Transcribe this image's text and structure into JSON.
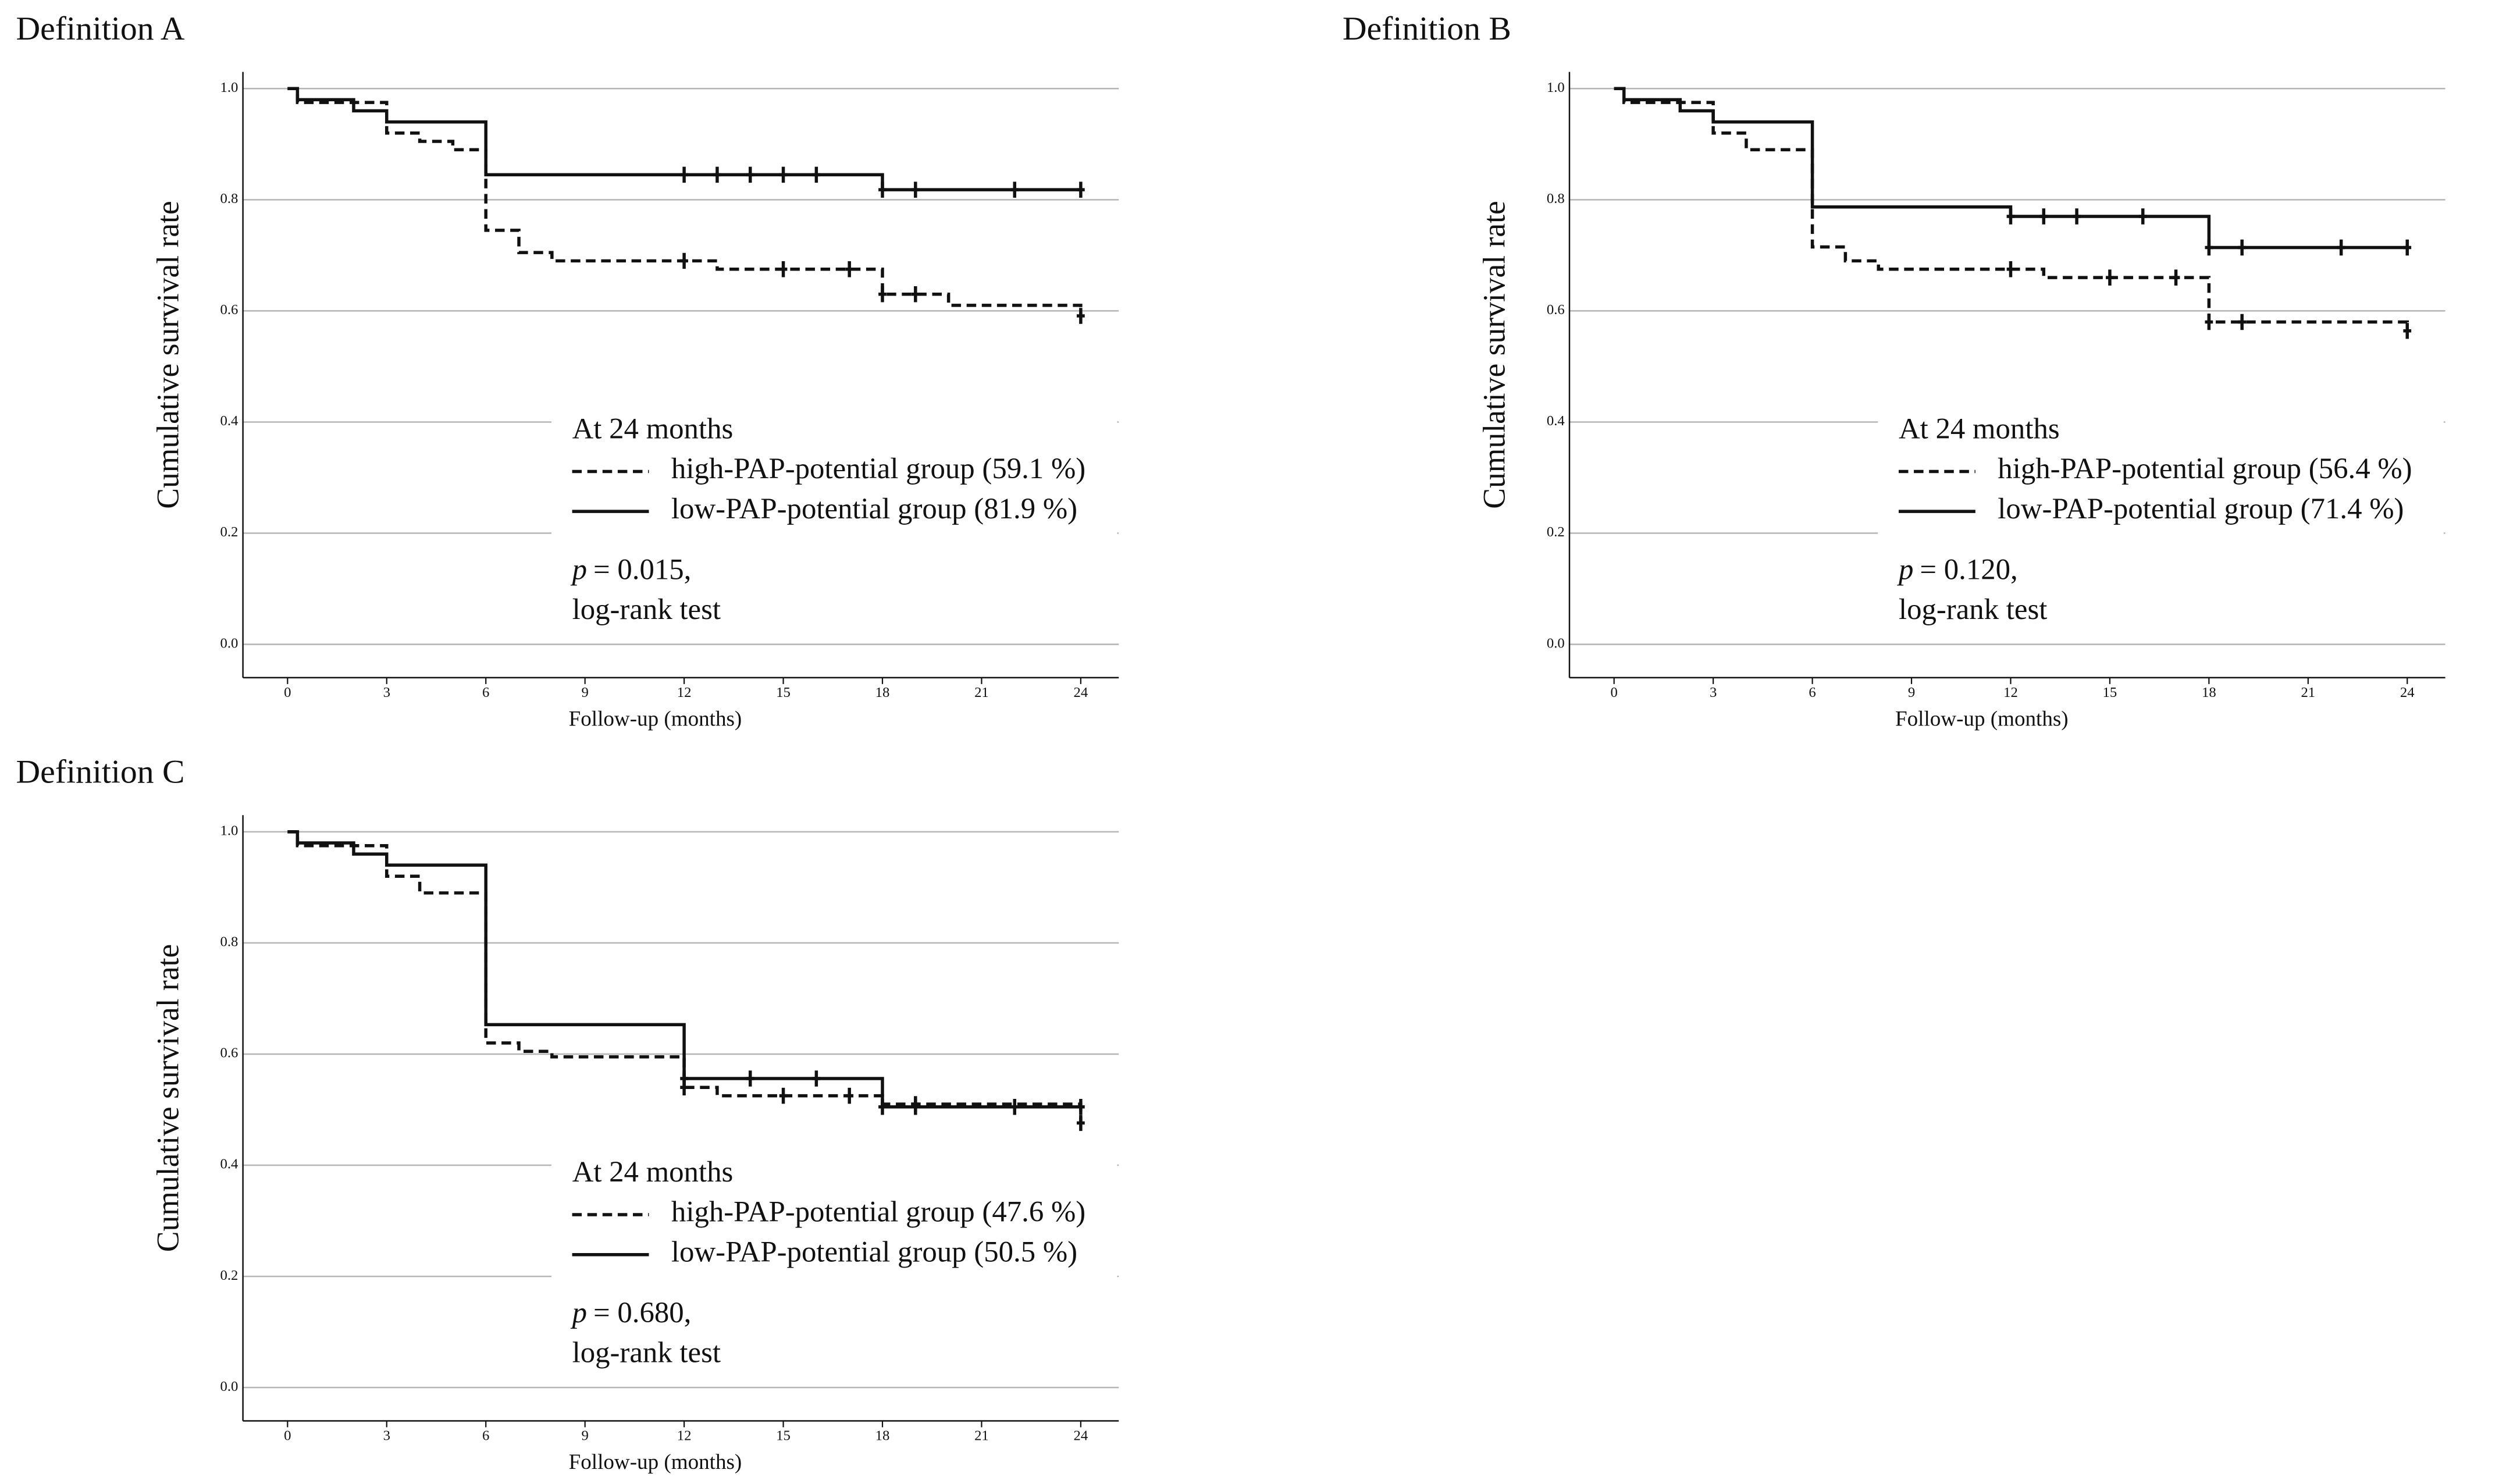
{
  "chart_data": [
    {
      "type": "step",
      "title": "Definition A",
      "xlabel": "Follow-up (months)",
      "ylabel": "Cumulative survival rate",
      "xlim": [
        -1.35,
        25.15
      ],
      "ylim": [
        -0.06,
        1.03
      ],
      "xticks": [
        0,
        3,
        6,
        9,
        12,
        15,
        18,
        21,
        24
      ],
      "yticks": [
        {
          "value": 0,
          "label": "0.0"
        },
        0.2,
        0.4,
        0.6,
        0.8,
        {
          "value": 1,
          "label": "1.0"
        }
      ],
      "grid": true,
      "legend_title": "At 24 months",
      "annotations": [
        "p",
        "= 0.015,",
        "log-rank test"
      ],
      "series": [
        {
          "name": "high-PAP-potential group (59.1 %)",
          "color": "#111111",
          "dash": "dashed",
          "x": [
            0,
            0.3,
            3,
            4,
            5,
            6,
            7,
            8,
            13,
            18,
            20,
            24
          ],
          "values": [
            1,
            0.975,
            0.92,
            0.905,
            0.89,
            0.745,
            0.705,
            0.69,
            0.675,
            0.63,
            0.61,
            0.591
          ],
          "censor_x": [
            12,
            15,
            17,
            18,
            19,
            24
          ],
          "censor_values": [
            0.69,
            0.675,
            0.675,
            0.63,
            0.63,
            0.591
          ]
        },
        {
          "name": "low-PAP-potential group (81.9 %)",
          "color": "#111111",
          "dash": "solid",
          "x": [
            0,
            0.3,
            2,
            3,
            6,
            18,
            24
          ],
          "values": [
            1,
            0.98,
            0.96,
            0.94,
            0.845,
            0.818,
            0.818
          ],
          "censor_x": [
            12,
            13,
            14,
            15,
            16,
            18,
            19,
            22,
            24
          ],
          "censor_values": [
            0.845,
            0.845,
            0.845,
            0.845,
            0.845,
            0.818,
            0.818,
            0.818,
            0.818
          ]
        }
      ]
    },
    {
      "type": "step",
      "title": "Definition B",
      "xlabel": "Follow-up (months)",
      "ylabel": "Cumulative survival rate",
      "xlim": [
        -1.35,
        25.15
      ],
      "ylim": [
        -0.06,
        1.03
      ],
      "xticks": [
        0,
        3,
        6,
        9,
        12,
        15,
        18,
        21,
        24
      ],
      "yticks": [
        {
          "value": 0,
          "label": "0.0"
        },
        0.2,
        0.4,
        0.6,
        0.8,
        {
          "value": 1,
          "label": "1.0"
        }
      ],
      "grid": true,
      "legend_title": "At 24 months",
      "annotations": [
        "p",
        "= 0.120,",
        "log-rank test"
      ],
      "series": [
        {
          "name": "high-PAP-potential group (56.4 %)",
          "color": "#111111",
          "dash": "dashed",
          "x": [
            0,
            0.3,
            3,
            4,
            6,
            7,
            8,
            13,
            18,
            24
          ],
          "values": [
            1,
            0.975,
            0.92,
            0.89,
            0.715,
            0.69,
            0.675,
            0.66,
            0.58,
            0.564
          ],
          "censor_x": [
            12,
            15,
            17,
            18,
            19,
            24
          ],
          "censor_values": [
            0.675,
            0.66,
            0.66,
            0.58,
            0.58,
            0.564
          ]
        },
        {
          "name": "low-PAP-potential group (71.4 %)",
          "color": "#111111",
          "dash": "solid",
          "x": [
            0,
            0.3,
            2,
            3,
            6,
            12,
            18,
            24
          ],
          "values": [
            1,
            0.98,
            0.96,
            0.94,
            0.787,
            0.77,
            0.714,
            0.714
          ],
          "censor_x": [
            12,
            13,
            14,
            16,
            18,
            19,
            22,
            24
          ],
          "censor_values": [
            0.77,
            0.77,
            0.77,
            0.77,
            0.714,
            0.714,
            0.714,
            0.714
          ]
        }
      ]
    },
    {
      "type": "step",
      "title": "Definition C",
      "xlabel": "Follow-up (months)",
      "ylabel": "Cumulative survival rate",
      "xlim": [
        -1.35,
        25.15
      ],
      "ylim": [
        -0.06,
        1.03
      ],
      "xticks": [
        0,
        3,
        6,
        9,
        12,
        15,
        18,
        21,
        24
      ],
      "yticks": [
        {
          "value": 0,
          "label": "0.0"
        },
        0.2,
        0.4,
        0.6,
        0.8,
        {
          "value": 1,
          "label": "1.0"
        }
      ],
      "grid": true,
      "legend_title": "At 24 months",
      "annotations": [
        "p",
        "= 0.680,",
        "log-rank test"
      ],
      "series": [
        {
          "name": "high-PAP-potential group (47.6 %)",
          "color": "#111111",
          "dash": "dashed",
          "x": [
            0,
            0.3,
            3,
            4,
            6,
            7,
            8,
            12,
            13,
            18,
            24
          ],
          "values": [
            1,
            0.975,
            0.92,
            0.89,
            0.62,
            0.605,
            0.595,
            0.54,
            0.525,
            0.51,
            0.476
          ],
          "censor_x": [
            12,
            15,
            17,
            19,
            24
          ],
          "censor_values": [
            0.54,
            0.525,
            0.525,
            0.51,
            0.476
          ]
        },
        {
          "name": "low-PAP-potential group (50.5 %)",
          "color": "#111111",
          "dash": "solid",
          "x": [
            0,
            0.3,
            2,
            3,
            6,
            12,
            18,
            24
          ],
          "values": [
            1,
            0.98,
            0.96,
            0.94,
            0.653,
            0.556,
            0.505,
            0.505
          ],
          "censor_x": [
            12,
            14,
            16,
            18,
            19,
            22,
            24
          ],
          "censor_values": [
            0.556,
            0.556,
            0.556,
            0.505,
            0.505,
            0.505,
            0.505
          ]
        }
      ]
    }
  ]
}
